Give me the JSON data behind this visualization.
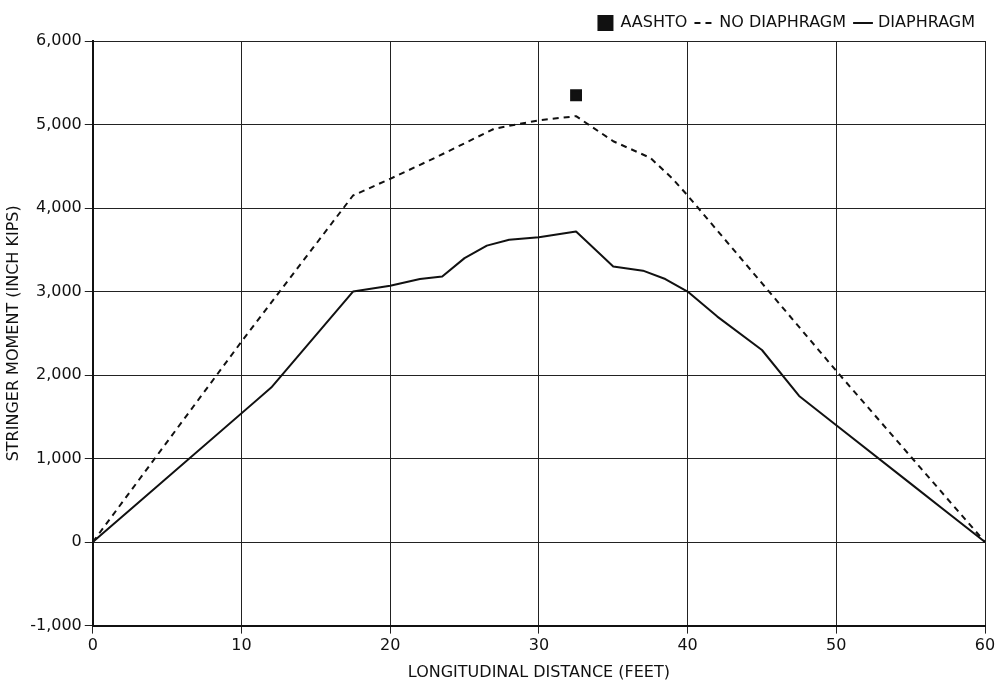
{
  "chart_data": {
    "type": "line",
    "xlabel": "LONGITUDINAL DISTANCE (FEET)",
    "ylabel": "STRINGER MOMENT (INCH KIPS)",
    "xlim": [
      0,
      60
    ],
    "xticks": [
      0,
      10,
      20,
      30,
      40,
      50,
      60
    ],
    "ylim": [
      -1000,
      6000
    ],
    "yticks": [
      {
        "value": -1000,
        "label": "-1,000"
      },
      0,
      {
        "value": 1000,
        "label": "1,000"
      },
      {
        "value": 2000,
        "label": "2,000"
      },
      {
        "value": 3000,
        "label": "3,000"
      },
      {
        "value": 4000,
        "label": "4,000"
      },
      {
        "value": 5000,
        "label": "5,000"
      },
      {
        "value": 6000,
        "label": "6,000"
      }
    ],
    "grid": true,
    "legend": "top right",
    "series": [
      {
        "name": "AASHTO",
        "type": "scatter",
        "marker": "square",
        "color": "#111111",
        "x": [
          32.5
        ],
        "values": [
          5350
        ]
      },
      {
        "name": "NO DIAPHRAGM",
        "line_style": "dashed",
        "marker": "none",
        "color": "#111111",
        "x": [
          0,
          10,
          17.5,
          20,
          23,
          27,
          30,
          32.5,
          35,
          37.5,
          39,
          40,
          50,
          60
        ],
        "values": [
          0,
          2400,
          4150,
          4350,
          4600,
          4950,
          5050,
          5100,
          4800,
          4600,
          4350,
          4150,
          2050,
          0
        ]
      },
      {
        "name": "DIAPHRAGM",
        "line_style": "solid",
        "marker": "none",
        "color": "#111111",
        "x": [
          0,
          12,
          17.5,
          20,
          22,
          23.5,
          25,
          26.5,
          28,
          30,
          32.5,
          35,
          37,
          38.5,
          40,
          42,
          45,
          47.5,
          50,
          55,
          60
        ],
        "values": [
          0,
          1850,
          3000,
          3070,
          3150,
          3180,
          3400,
          3550,
          3620,
          3650,
          3720,
          3300,
          3250,
          3150,
          3000,
          2700,
          2300,
          1750,
          1400,
          700,
          0
        ]
      }
    ]
  }
}
